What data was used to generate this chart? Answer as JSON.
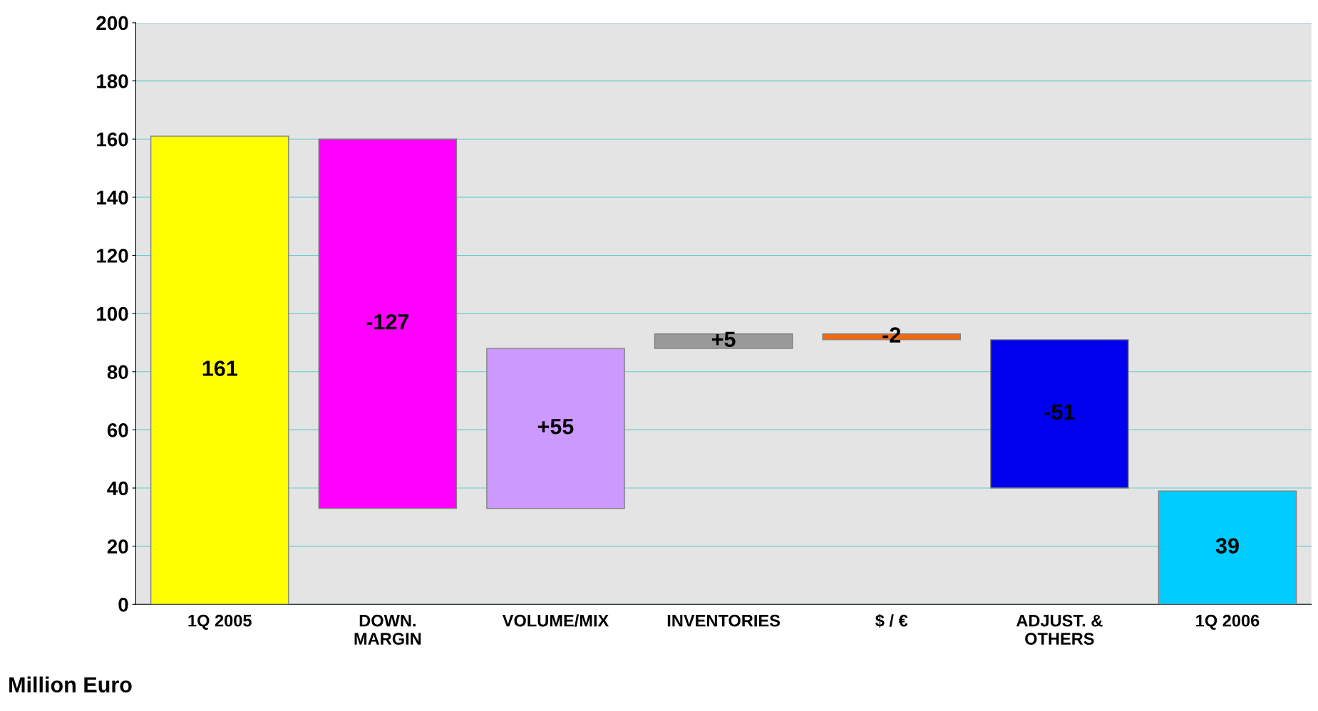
{
  "chart_data": {
    "type": "bar",
    "categories": [
      "1Q 2005",
      "DOWN.\nMARGIN",
      "VOLUME/MIX",
      "INVENTORIES",
      "$ / €",
      "ADJUST. &\nOTHERS",
      "1Q 2006"
    ],
    "values": [
      161,
      -127,
      55,
      5,
      -2,
      -51,
      39
    ],
    "base": [
      0,
      160,
      33,
      88,
      93,
      91,
      0
    ],
    "colors": [
      "#ffff00",
      "#ff00ff",
      "#cc99ff",
      "#999999",
      "#ff6600",
      "#0000ee",
      "#00ccff"
    ],
    "value_labels": [
      "161",
      "-127",
      "+55",
      "+5",
      "-2",
      "-51",
      "39"
    ],
    "ylim": [
      0,
      200
    ],
    "yticks": [
      0,
      20,
      40,
      60,
      80,
      100,
      120,
      140,
      160,
      180,
      200
    ],
    "grid": "y",
    "annotations": [
      "Million Euro"
    ]
  }
}
